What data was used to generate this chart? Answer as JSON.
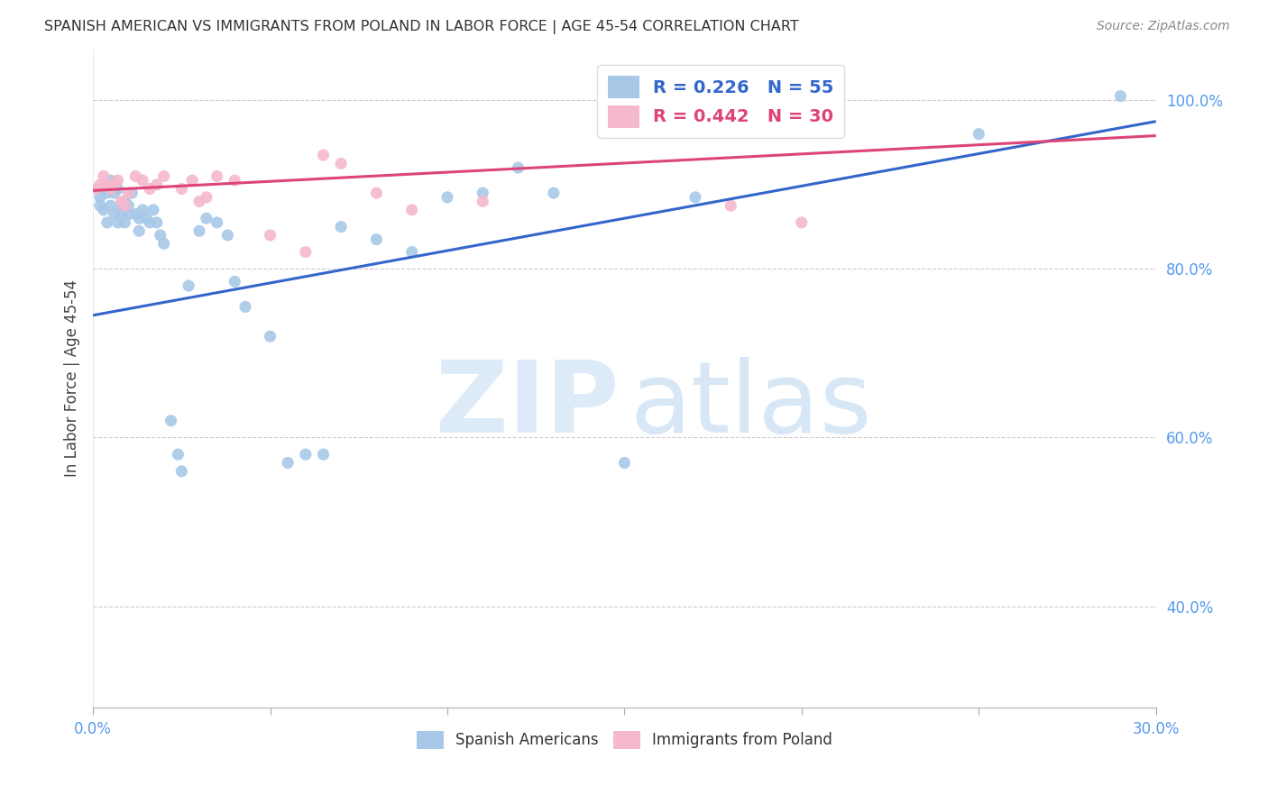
{
  "title": "SPANISH AMERICAN VS IMMIGRANTS FROM POLAND IN LABOR FORCE | AGE 45-54 CORRELATION CHART",
  "source": "Source: ZipAtlas.com",
  "ylabel": "In Labor Force | Age 45-54",
  "xlim": [
    0.0,
    0.3
  ],
  "ylim": [
    0.28,
    1.06
  ],
  "xticks": [
    0.0,
    0.05,
    0.1,
    0.15,
    0.2,
    0.25,
    0.3
  ],
  "yticks": [
    0.4,
    0.6,
    0.8,
    1.0
  ],
  "ytick_labels": [
    "40.0%",
    "60.0%",
    "80.0%",
    "100.0%"
  ],
  "xtick_labels_bottom": [
    "0.0%",
    "",
    "",
    "",
    "",
    "",
    "30.0%"
  ],
  "blue_color": "#a8c8e8",
  "pink_color": "#f5b8cc",
  "blue_line_color": "#3366cc",
  "pink_line_color": "#dd4477",
  "legend_blue_text": "R = 0.226   N = 55",
  "legend_pink_text": "R = 0.442   N = 30",
  "watermark_zip": "ZIP",
  "watermark_atlas": "atlas",
  "spanish_x": [
    0.001,
    0.002,
    0.002,
    0.003,
    0.003,
    0.004,
    0.004,
    0.005,
    0.005,
    0.006,
    0.006,
    0.007,
    0.007,
    0.008,
    0.008,
    0.009,
    0.009,
    0.01,
    0.01,
    0.011,
    0.012,
    0.013,
    0.013,
    0.014,
    0.015,
    0.016,
    0.017,
    0.018,
    0.019,
    0.02,
    0.022,
    0.024,
    0.025,
    0.027,
    0.03,
    0.032,
    0.035,
    0.038,
    0.04,
    0.043,
    0.05,
    0.055,
    0.06,
    0.065,
    0.07,
    0.08,
    0.09,
    0.1,
    0.11,
    0.12,
    0.13,
    0.15,
    0.17,
    0.25,
    0.29
  ],
  "spanish_y": [
    0.895,
    0.885,
    0.875,
    0.895,
    0.87,
    0.89,
    0.855,
    0.905,
    0.875,
    0.89,
    0.865,
    0.855,
    0.895,
    0.875,
    0.865,
    0.88,
    0.855,
    0.875,
    0.865,
    0.89,
    0.865,
    0.86,
    0.845,
    0.87,
    0.86,
    0.855,
    0.87,
    0.855,
    0.84,
    0.83,
    0.62,
    0.58,
    0.56,
    0.78,
    0.845,
    0.86,
    0.855,
    0.84,
    0.785,
    0.755,
    0.72,
    0.57,
    0.58,
    0.58,
    0.85,
    0.835,
    0.82,
    0.885,
    0.89,
    0.92,
    0.89,
    0.57,
    0.885,
    0.96,
    1.005
  ],
  "poland_x": [
    0.001,
    0.002,
    0.003,
    0.004,
    0.005,
    0.006,
    0.007,
    0.008,
    0.009,
    0.01,
    0.012,
    0.014,
    0.016,
    0.018,
    0.02,
    0.025,
    0.028,
    0.03,
    0.032,
    0.035,
    0.04,
    0.05,
    0.06,
    0.065,
    0.07,
    0.08,
    0.09,
    0.11,
    0.18,
    0.2
  ],
  "poland_y": [
    0.895,
    0.9,
    0.91,
    0.9,
    0.895,
    0.9,
    0.905,
    0.88,
    0.875,
    0.89,
    0.91,
    0.905,
    0.895,
    0.9,
    0.91,
    0.895,
    0.905,
    0.88,
    0.885,
    0.91,
    0.905,
    0.84,
    0.82,
    0.935,
    0.925,
    0.89,
    0.87,
    0.88,
    0.875,
    0.855
  ],
  "blue_trend": [
    0.745,
    0.975
  ],
  "pink_trend": [
    0.893,
    0.958
  ],
  "background_color": "#ffffff",
  "grid_color": "#cccccc",
  "title_color": "#333333",
  "axis_tick_color": "#5599ee",
  "marker_size": 90
}
